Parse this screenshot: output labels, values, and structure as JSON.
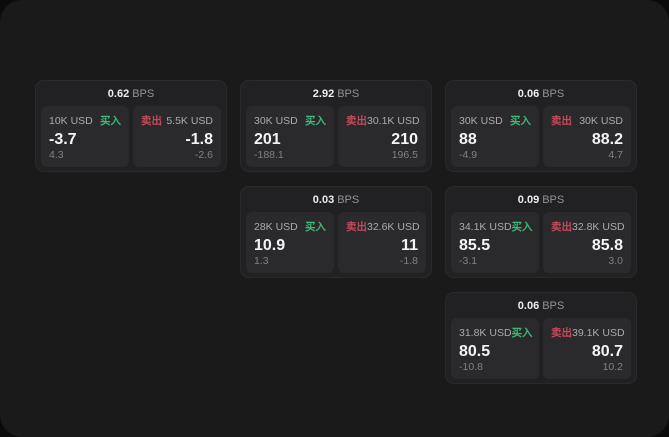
{
  "labels": {
    "bps": "BPS",
    "buy": "买入",
    "sell": "卖出"
  },
  "colors": {
    "buy": "#3eb874",
    "sell": "#c4495c",
    "panel_bg": "#1a1a1b",
    "card_bg": "#212123",
    "tile_bg": "#2a2a2d"
  },
  "cards": [
    {
      "bps": "0.62",
      "buy": {
        "amount": "10K USD",
        "value": "-3.7",
        "sub": "4.3"
      },
      "sell": {
        "amount": "5.5K USD",
        "value": "-1.8",
        "sub": "-2.6"
      }
    },
    {
      "bps": "2.92",
      "buy": {
        "amount": "30K USD",
        "value": "201",
        "sub": "-188.1"
      },
      "sell": {
        "amount": "30.1K USD",
        "value": "210",
        "sub": "196.5"
      }
    },
    {
      "bps": "0.06",
      "buy": {
        "amount": "30K USD",
        "value": "88",
        "sub": "-4.9"
      },
      "sell": {
        "amount": "30K USD",
        "value": "88.2",
        "sub": "4.7"
      }
    },
    {
      "bps": "0.03",
      "buy": {
        "amount": "28K USD",
        "value": "10.9",
        "sub": "1.3"
      },
      "sell": {
        "amount": "32.6K USD",
        "value": "11",
        "sub": "-1.8"
      }
    },
    {
      "bps": "0.09",
      "buy": {
        "amount": "34.1K USD",
        "value": "85.5",
        "sub": "-3.1"
      },
      "sell": {
        "amount": "32.8K USD",
        "value": "85.8",
        "sub": "3.0"
      }
    },
    {
      "bps": "0.06",
      "buy": {
        "amount": "31.8K USD",
        "value": "80.5",
        "sub": "-10.8"
      },
      "sell": {
        "amount": "39.1K USD",
        "value": "80.7",
        "sub": "10.2"
      }
    }
  ]
}
